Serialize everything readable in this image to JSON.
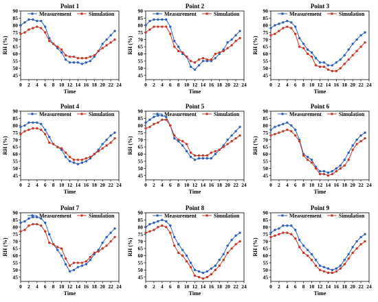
{
  "colors": {
    "measurement": "#2f5fb3",
    "simulation": "#c0392b",
    "axis": "#000000"
  },
  "charts": {
    "xlabel": "Time",
    "ylabel": "RH (%)",
    "legend_measurement": "Measurement",
    "legend_simulation": "Simulation",
    "x_ticks": [
      "0",
      "2",
      "4",
      "6",
      "8",
      "10",
      "12",
      "14",
      "16",
      "18",
      "20",
      "22",
      "24"
    ],
    "y_ticks": [
      "45",
      "50",
      "55",
      "60",
      "65",
      "70",
      "75",
      "80",
      "85",
      "90"
    ]
  },
  "chart_data": [
    {
      "type": "line",
      "title": "Point 1",
      "xlabel": "Time",
      "ylabel": "RH (%)",
      "xlim": [
        0,
        24
      ],
      "ylim": [
        42,
        90
      ],
      "grid": false,
      "legend": "top-right",
      "x": [
        0,
        1,
        2,
        3,
        4,
        5,
        6,
        7,
        8,
        9,
        10,
        11,
        12,
        13,
        14,
        15,
        16,
        17,
        18,
        19,
        20,
        21,
        22,
        23
      ],
      "series": [
        {
          "name": "Measurement",
          "values": [
            80,
            82,
            84,
            84,
            83,
            83,
            79,
            71,
            67,
            64,
            61,
            56,
            54,
            54,
            54,
            53,
            54,
            55,
            58,
            62,
            67,
            70,
            73,
            76
          ]
        },
        {
          "name": "Simulation",
          "values": [
            74,
            75,
            77,
            78,
            79,
            78,
            75,
            69,
            67,
            65,
            63,
            59,
            58,
            58,
            57,
            57,
            57,
            58,
            59,
            62,
            64,
            66,
            68,
            70
          ]
        }
      ]
    },
    {
      "type": "line",
      "title": "Point 2",
      "xlabel": "Time",
      "ylabel": "RH (%)",
      "xlim": [
        0,
        24
      ],
      "ylim": [
        42,
        90
      ],
      "grid": false,
      "legend": "top-right",
      "x": [
        0,
        1,
        2,
        3,
        4,
        5,
        6,
        7,
        8,
        9,
        10,
        11,
        12,
        13,
        14,
        15,
        16,
        17,
        18,
        19,
        20,
        21,
        22,
        23
      ],
      "series": [
        {
          "name": "Measurement",
          "values": [
            80,
            83,
            84,
            84,
            84,
            84,
            79,
            69,
            65,
            60,
            58,
            51,
            49,
            52,
            55,
            55,
            55,
            57,
            60,
            63,
            68,
            70,
            73,
            76
          ]
        },
        {
          "name": "Simulation",
          "values": [
            75,
            77,
            79,
            79,
            79,
            79,
            74,
            65,
            62,
            61,
            58,
            55,
            54,
            56,
            57,
            56,
            56,
            60,
            61,
            62,
            64,
            66,
            69,
            71
          ]
        }
      ]
    },
    {
      "type": "line",
      "title": "Point 3",
      "xlabel": "Time",
      "ylabel": "RH (%)",
      "xlim": [
        0,
        24
      ],
      "ylim": [
        42,
        90
      ],
      "grid": false,
      "legend": "top-right",
      "x": [
        0,
        1,
        2,
        3,
        4,
        5,
        6,
        7,
        8,
        9,
        10,
        11,
        12,
        13,
        14,
        15,
        16,
        17,
        18,
        19,
        20,
        21,
        22,
        23
      ],
      "series": [
        {
          "name": "Measurement",
          "values": [
            78,
            80,
            81,
            82,
            83,
            82,
            79,
            71,
            67,
            63,
            61,
            57,
            54,
            54,
            52,
            52,
            54,
            56,
            59,
            63,
            67,
            70,
            73,
            75
          ]
        },
        {
          "name": "Simulation",
          "values": [
            73,
            74,
            76,
            78,
            79,
            78,
            74,
            65,
            64,
            60,
            58,
            52,
            51,
            51,
            49,
            48,
            48,
            50,
            53,
            56,
            59,
            62,
            65,
            68
          ]
        }
      ]
    },
    {
      "type": "line",
      "title": "Point 4",
      "xlabel": "Time",
      "ylabel": "RH (%)",
      "xlim": [
        0,
        24
      ],
      "ylim": [
        42,
        90
      ],
      "grid": false,
      "legend": "top-right",
      "x": [
        0,
        1,
        2,
        3,
        4,
        5,
        6,
        7,
        8,
        9,
        10,
        11,
        12,
        13,
        14,
        15,
        16,
        17,
        18,
        19,
        20,
        21,
        22,
        23
      ],
      "series": [
        {
          "name": "Measurement",
          "values": [
            79,
            80,
            82,
            82,
            82,
            81,
            77,
            72,
            67,
            65,
            63,
            58,
            55,
            54,
            53,
            54,
            55,
            57,
            60,
            63,
            67,
            70,
            73,
            75
          ]
        },
        {
          "name": "Simulation",
          "values": [
            74,
            76,
            77,
            78,
            78,
            77,
            74,
            68,
            67,
            65,
            64,
            61,
            58,
            56,
            56,
            56,
            57,
            58,
            60,
            62,
            64,
            66,
            68,
            71
          ]
        }
      ]
    },
    {
      "type": "line",
      "title": "Point 5",
      "xlabel": "Time",
      "ylabel": "RH (%)",
      "xlim": [
        0,
        24
      ],
      "ylim": [
        42,
        90
      ],
      "grid": false,
      "legend": "top-right",
      "x": [
        0,
        1,
        2,
        3,
        4,
        5,
        6,
        7,
        8,
        9,
        10,
        11,
        12,
        13,
        14,
        15,
        16,
        17,
        18,
        19,
        20,
        21,
        22,
        23
      ],
      "series": [
        {
          "name": "Measurement",
          "values": [
            82,
            84,
            86,
            87,
            87,
            86,
            80,
            71,
            69,
            66,
            62,
            58,
            56,
            57,
            57,
            57,
            57,
            60,
            63,
            66,
            70,
            73,
            76,
            79
          ]
        },
        {
          "name": "Simulation",
          "values": [
            78,
            79,
            81,
            82,
            84,
            84,
            80,
            73,
            70,
            69,
            67,
            61,
            59,
            59,
            59,
            59,
            61,
            62,
            63,
            65,
            67,
            69,
            71,
            73
          ]
        }
      ]
    },
    {
      "type": "line",
      "title": "Point 6",
      "xlabel": "Time",
      "ylabel": "RH (%)",
      "xlim": [
        0,
        24
      ],
      "ylim": [
        42,
        90
      ],
      "grid": false,
      "legend": "top-right",
      "x": [
        0,
        1,
        2,
        3,
        4,
        5,
        6,
        7,
        8,
        9,
        10,
        11,
        12,
        13,
        14,
        15,
        16,
        17,
        18,
        19,
        20,
        21,
        22,
        23
      ],
      "series": [
        {
          "name": "Measurement",
          "values": [
            77,
            79,
            80,
            81,
            82,
            80,
            77,
            70,
            60,
            58,
            56,
            51,
            48,
            48,
            47,
            48,
            50,
            52,
            56,
            61,
            66,
            70,
            73,
            75
          ]
        },
        {
          "name": "Simulation",
          "values": [
            73,
            74,
            75,
            76,
            77,
            76,
            73,
            69,
            59,
            56,
            54,
            50,
            46,
            46,
            45,
            46,
            48,
            50,
            52,
            56,
            63,
            67,
            69,
            71
          ]
        }
      ]
    },
    {
      "type": "line",
      "title": "Point 7",
      "xlabel": "Time",
      "ylabel": "RH (%)",
      "xlim": [
        0,
        24
      ],
      "ylim": [
        42,
        90
      ],
      "grid": false,
      "legend": "top-right",
      "x": [
        0,
        1,
        2,
        3,
        4,
        5,
        6,
        7,
        8,
        9,
        10,
        11,
        12,
        13,
        14,
        15,
        16,
        17,
        18,
        19,
        20,
        21,
        22,
        23
      ],
      "series": [
        {
          "name": "Measurement",
          "values": [
            83,
            84,
            86,
            87,
            87,
            86,
            83,
            75,
            68,
            64,
            60,
            54,
            49,
            50,
            52,
            53,
            54,
            57,
            61,
            64,
            69,
            73,
            76,
            79
          ]
        },
        {
          "name": "Simulation",
          "values": [
            77,
            78,
            81,
            82,
            82,
            81,
            77,
            69,
            68,
            66,
            65,
            58,
            53,
            55,
            55,
            55,
            56,
            59,
            62,
            63,
            65,
            67,
            70,
            73
          ]
        }
      ]
    },
    {
      "type": "line",
      "title": "Point 8",
      "xlabel": "Time",
      "ylabel": "RH (%)",
      "xlim": [
        0,
        24
      ],
      "ylim": [
        42,
        90
      ],
      "grid": false,
      "legend": "top-right",
      "x": [
        0,
        1,
        2,
        3,
        4,
        5,
        6,
        7,
        8,
        9,
        10,
        11,
        12,
        13,
        14,
        15,
        16,
        17,
        18,
        19,
        20,
        21,
        22,
        23
      ],
      "series": [
        {
          "name": "Measurement",
          "values": [
            80,
            82,
            83,
            84,
            85,
            84,
            81,
            73,
            68,
            64,
            60,
            55,
            50,
            49,
            48,
            49,
            51,
            53,
            57,
            61,
            67,
            71,
            74,
            76
          ]
        },
        {
          "name": "Simulation",
          "values": [
            76,
            77,
            78,
            80,
            81,
            80,
            76,
            67,
            62,
            60,
            56,
            52,
            46,
            45,
            44,
            45,
            47,
            50,
            53,
            57,
            62,
            65,
            68,
            70
          ]
        }
      ]
    },
    {
      "type": "line",
      "title": "Point 9",
      "xlabel": "Time",
      "ylabel": "RH (%)",
      "xlim": [
        0,
        24
      ],
      "ylim": [
        42,
        90
      ],
      "grid": false,
      "legend": "top-right",
      "x": [
        0,
        1,
        2,
        3,
        4,
        5,
        6,
        7,
        8,
        9,
        10,
        11,
        12,
        13,
        14,
        15,
        16,
        17,
        18,
        19,
        20,
        21,
        22,
        23
      ],
      "series": [
        {
          "name": "Measurement",
          "values": [
            76,
            78,
            79,
            81,
            81,
            81,
            78,
            71,
            67,
            64,
            61,
            57,
            53,
            52,
            51,
            50,
            51,
            53,
            57,
            61,
            66,
            70,
            73,
            75
          ]
        },
        {
          "name": "Simulation",
          "values": [
            73,
            74,
            75,
            76,
            76,
            75,
            72,
            66,
            62,
            60,
            57,
            53,
            50,
            49,
            48,
            48,
            49,
            51,
            54,
            58,
            62,
            65,
            68,
            70
          ]
        }
      ]
    }
  ]
}
